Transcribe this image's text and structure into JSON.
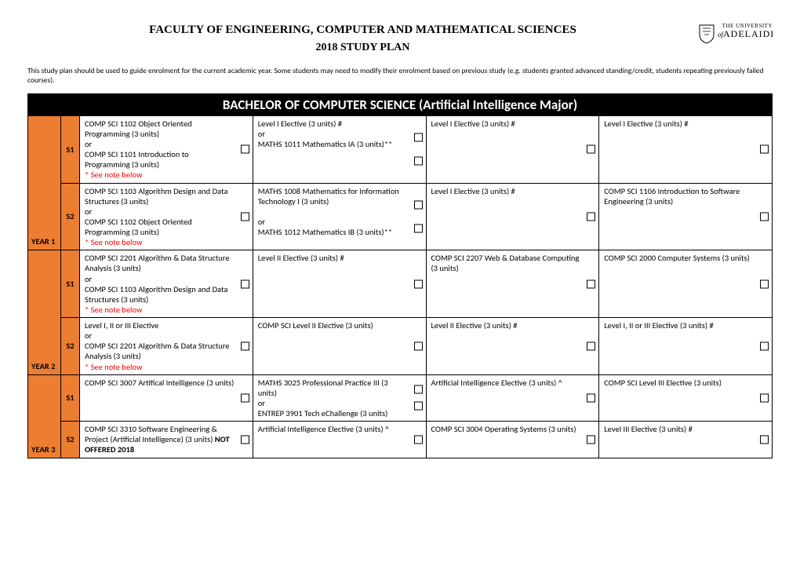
{
  "header": {
    "faculty": "FACULTY OF ENGINEERING, COMPUTER AND MATHEMATICAL SCIENCES",
    "plan_year": "2018 STUDY PLAN",
    "logo_small": "THE UNIVERSITY",
    "logo_of": "of",
    "logo_big": "ADELAIDE"
  },
  "intro": "This study plan should be used to guide enrolment for the current academic year. Some students may need to modify their enrolment based on previous study (e.g. students granted advanced standing/credit, students repeating previously failed courses).",
  "program_title": "BACHELOR OF COMPUTER SCIENCE (Artificial Intelligence Major)",
  "years": [
    {
      "label": "YEAR 1",
      "semesters": [
        {
          "label": "S1",
          "courses": [
            {
              "lines": [
                "COMP SCI 1102 Object Oriented Programming (3 units)",
                "or",
                "COMP SCI 1101 Introduction to Programming  (3 units)"
              ],
              "note": "* See note below",
              "boxes": 1
            },
            {
              "lines": [
                "Level I Elective (3 units) #",
                "or",
                "MATHS 1011 Mathematics IA (3 units)**"
              ],
              "boxes": 2
            },
            {
              "lines": [
                "Level I  Elective (3 units) #"
              ],
              "boxes": 1
            },
            {
              "lines": [
                "Level I Elective (3 units) #"
              ],
              "boxes": 1
            }
          ]
        },
        {
          "label": "S2",
          "courses": [
            {
              "lines": [
                "COMP SCI 1103 Algorithm Design and Data Structures (3 units)",
                "or",
                "COMP SCI 1102 Object Oriented Programming (3 units)"
              ],
              "note": "* See note below",
              "boxes": 1
            },
            {
              "lines": [
                "MATHS 1008 Mathematics for Information Technology I (3 units)",
                "",
                "or",
                "MATHS 1012 Mathematics IB (3 units)**"
              ],
              "boxes": 2
            },
            {
              "lines": [
                "Level I Elective (3 units) #"
              ],
              "boxes": 1
            },
            {
              "lines": [
                "COMP SCI 1106 Introduction to Software Engineering (3 units)"
              ],
              "boxes": 1
            }
          ]
        }
      ]
    },
    {
      "label": "YEAR 2",
      "semesters": [
        {
          "label": "S1",
          "courses": [
            {
              "lines": [
                "COMP SCI 2201 Algorithm & Data Structure Analysis (3 units)",
                "or",
                "COMP SCI 1103 Algorithm Design and Data Structures (3 units)"
              ],
              "note": "* See note below",
              "boxes": 1
            },
            {
              "lines": [
                "Level II Elective (3 units) #"
              ],
              "boxes": 1
            },
            {
              "lines": [
                "COMP SCI 2207 Web & Database Computing (3 units)"
              ],
              "boxes": 1
            },
            {
              "lines": [
                "COMP SCI 2000 Computer Systems (3 units)"
              ],
              "boxes": 1
            }
          ]
        },
        {
          "label": "S2",
          "courses": [
            {
              "lines": [
                "Level I, II or III Elective",
                "or",
                "COMP SCI 2201 Algorithm & Data Structure Analysis (3 units)"
              ],
              "note": "* See note below",
              "boxes": 1
            },
            {
              "lines": [
                "COMP SCI Level II Elective (3 units)"
              ],
              "boxes": 1
            },
            {
              "lines": [
                "Level II Elective (3 units) #"
              ],
              "boxes": 1
            },
            {
              "lines": [
                "Level I, II or III Elective (3 units) #"
              ],
              "boxes": 1
            }
          ]
        }
      ]
    },
    {
      "label": "YEAR 3",
      "semesters": [
        {
          "label": "S1",
          "courses": [
            {
              "lines": [
                "COMP SCI 3007 Artifical Intelligence (3 units)"
              ],
              "boxes": 1
            },
            {
              "lines": [
                "MATHS 3025 Professional Practice III (3 units)",
                "or",
                "ENTREP 3901 Tech eChallenge (3 units)"
              ],
              "boxes": 2
            },
            {
              "lines": [
                "Artificial Intelligence Elective (3 units) ^"
              ],
              "boxes": 1
            },
            {
              "lines": [
                "COMP SCI Level III Elective (3 units)"
              ],
              "boxes": 1
            }
          ]
        },
        {
          "label": "S2",
          "courses": [
            {
              "lines": [
                "COMP SCI 3310 Software Engineering & Project (Artificial Intelligence) (3 units)"
              ],
              "bold_suffix": "NOT OFFERED 2018",
              "boxes": 1
            },
            {
              "lines": [
                "Artificial Intelligence Elective (3 units) ^"
              ],
              "boxes": 1
            },
            {
              "lines": [
                "COMP SCI 3004 Operating Systems (3 units)"
              ],
              "boxes": 1
            },
            {
              "lines": [
                "Level III Elective (3 units) #"
              ],
              "boxes": 1
            }
          ]
        }
      ]
    }
  ],
  "colors": {
    "accent": "#ed7d31",
    "title_bg": "#000000",
    "title_fg": "#ffffff",
    "note": "#ff0000",
    "border": "#000000"
  }
}
